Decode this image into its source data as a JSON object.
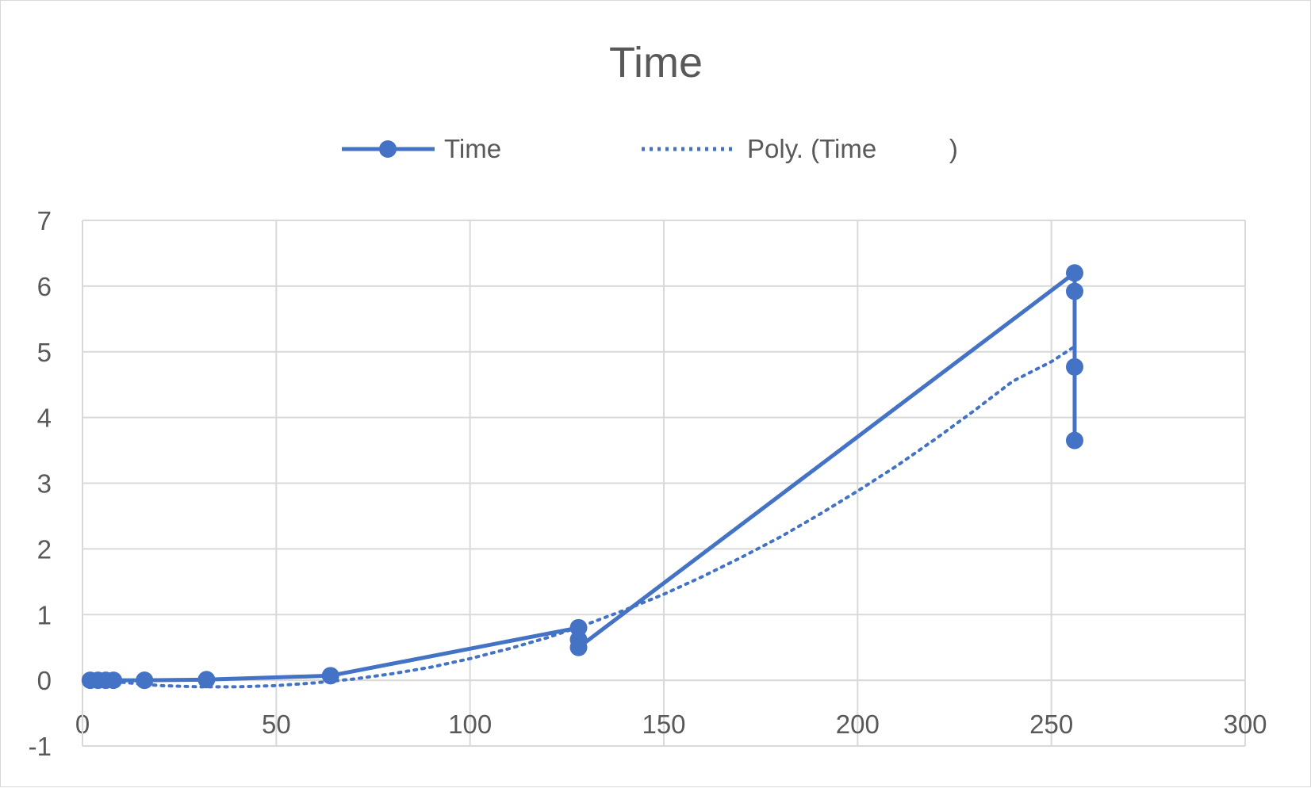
{
  "chart_data": {
    "type": "scatter",
    "title": "Time",
    "xlabel": "",
    "ylabel": "",
    "xlim": [
      0,
      300
    ],
    "ylim": [
      -1,
      7
    ],
    "x_ticks": [
      0,
      50,
      100,
      150,
      200,
      250,
      300
    ],
    "y_ticks": [
      -1,
      0,
      1,
      2,
      3,
      4,
      5,
      6,
      7
    ],
    "grid": true,
    "legend_position": "top",
    "legend": [
      "Time",
      "Poly. (Time          )"
    ],
    "color": "#4472C4",
    "series": [
      {
        "name": "Time",
        "style": "line-with-markers",
        "x": [
          2,
          4,
          6,
          8,
          16,
          16,
          32,
          64,
          128,
          128,
          128,
          256,
          256,
          256,
          256
        ],
        "y": [
          0,
          0,
          0,
          0,
          0,
          0,
          0.01,
          0.07,
          0.8,
          0.62,
          0.5,
          6.2,
          5.92,
          4.77,
          3.65
        ]
      },
      {
        "name": "Poly. (Time          )",
        "style": "dotted-trendline",
        "polynomial_order": 2,
        "x": [
          2,
          10,
          20,
          30,
          40,
          50,
          60,
          70,
          80,
          90,
          100,
          110,
          120,
          130,
          140,
          150,
          160,
          170,
          180,
          190,
          200,
          210,
          220,
          230,
          240,
          250,
          256
        ],
        "y": [
          0.01,
          -0.03,
          -0.08,
          -0.1,
          -0.1,
          -0.08,
          -0.04,
          0.02,
          0.1,
          0.2,
          0.33,
          0.48,
          0.65,
          0.85,
          1.07,
          1.31,
          1.58,
          1.87,
          2.18,
          2.52,
          2.88,
          3.26,
          3.67,
          4.1,
          4.55,
          4.85,
          5.08
        ]
      }
    ]
  }
}
